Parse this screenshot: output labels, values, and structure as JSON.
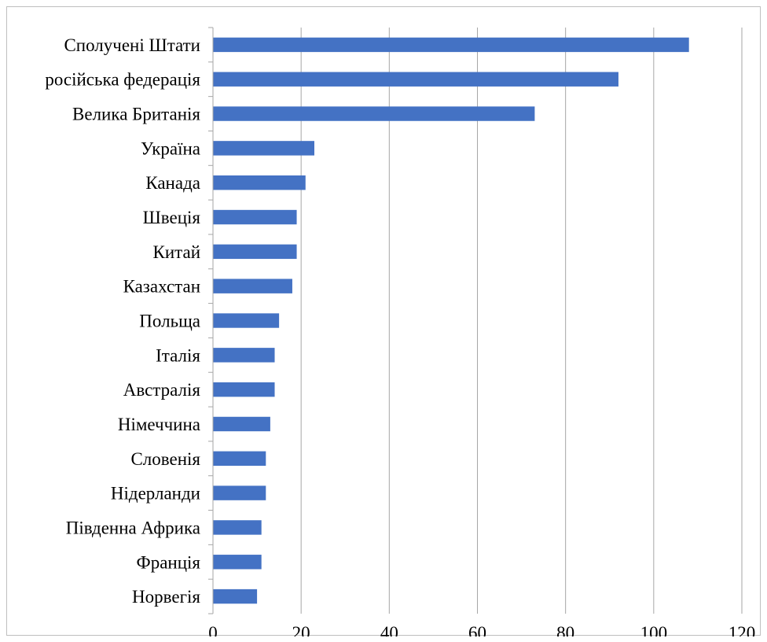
{
  "chart_data": {
    "type": "bar",
    "orientation": "horizontal",
    "categories": [
      "Сполучені Штати",
      "російська федерація",
      "Велика Британія",
      "Україна",
      "Канада",
      "Швеція",
      "Китай",
      "Казахстан",
      "Польща",
      "Італія",
      "Австралія",
      "Німеччина",
      "Словенія",
      "Нідерланди",
      "Південна Африка",
      "Франція",
      "Норвегія"
    ],
    "values": [
      108,
      92,
      73,
      23,
      21,
      19,
      19,
      18,
      15,
      14,
      14,
      13,
      12,
      12,
      11,
      11,
      10
    ],
    "xlim": [
      0,
      120
    ],
    "xticks": [
      "0",
      "20",
      "40",
      "60",
      "80",
      "100",
      "120"
    ],
    "grid": true,
    "legend": "none",
    "bar_color": "#4472c4",
    "grid_color": "#a6a6a6",
    "title": "",
    "xlabel": "",
    "ylabel": ""
  }
}
